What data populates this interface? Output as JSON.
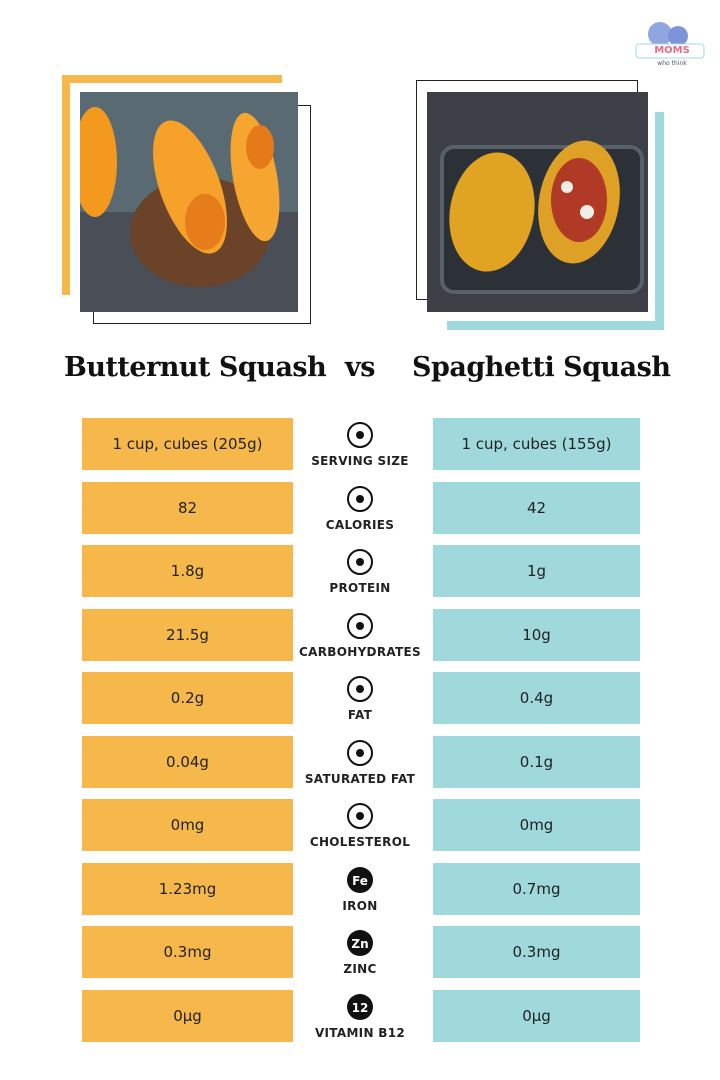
{
  "logo": {
    "title": "MOMS",
    "tagline": "who think"
  },
  "headings": {
    "left": "Butternut Squash",
    "vs": "vs",
    "right": "Spaghetti Squash"
  },
  "rows": [
    {
      "label": "SERVING SIZE",
      "left": "1 cup, cubes (205g)",
      "right": "1 cup, cubes (155g)"
    },
    {
      "label": "CALORIES",
      "left": "82",
      "right": "42"
    },
    {
      "label": "PROTEIN",
      "left": "1.8g",
      "right": "1g"
    },
    {
      "label": "CARBOHYDRATES",
      "left": "21.5g",
      "right": "10g"
    },
    {
      "label": "FAT",
      "left": "0.2g",
      "right": "0.4g"
    },
    {
      "label": "SATURATED FAT",
      "left": "0.04g",
      "right": "0.1g"
    },
    {
      "label": "CHOLESTEROL",
      "left": "0mg",
      "right": "0mg"
    },
    {
      "label": "IRON",
      "icon_text": "Fe",
      "left": "1.23mg",
      "right": "0.7mg"
    },
    {
      "label": "ZINC",
      "icon_text": "Zn",
      "left": "0.3mg",
      "right": "0.3mg"
    },
    {
      "label": "VITAMIN B12",
      "icon_text": "12",
      "left": "0µg",
      "right": "0µg"
    }
  ]
}
